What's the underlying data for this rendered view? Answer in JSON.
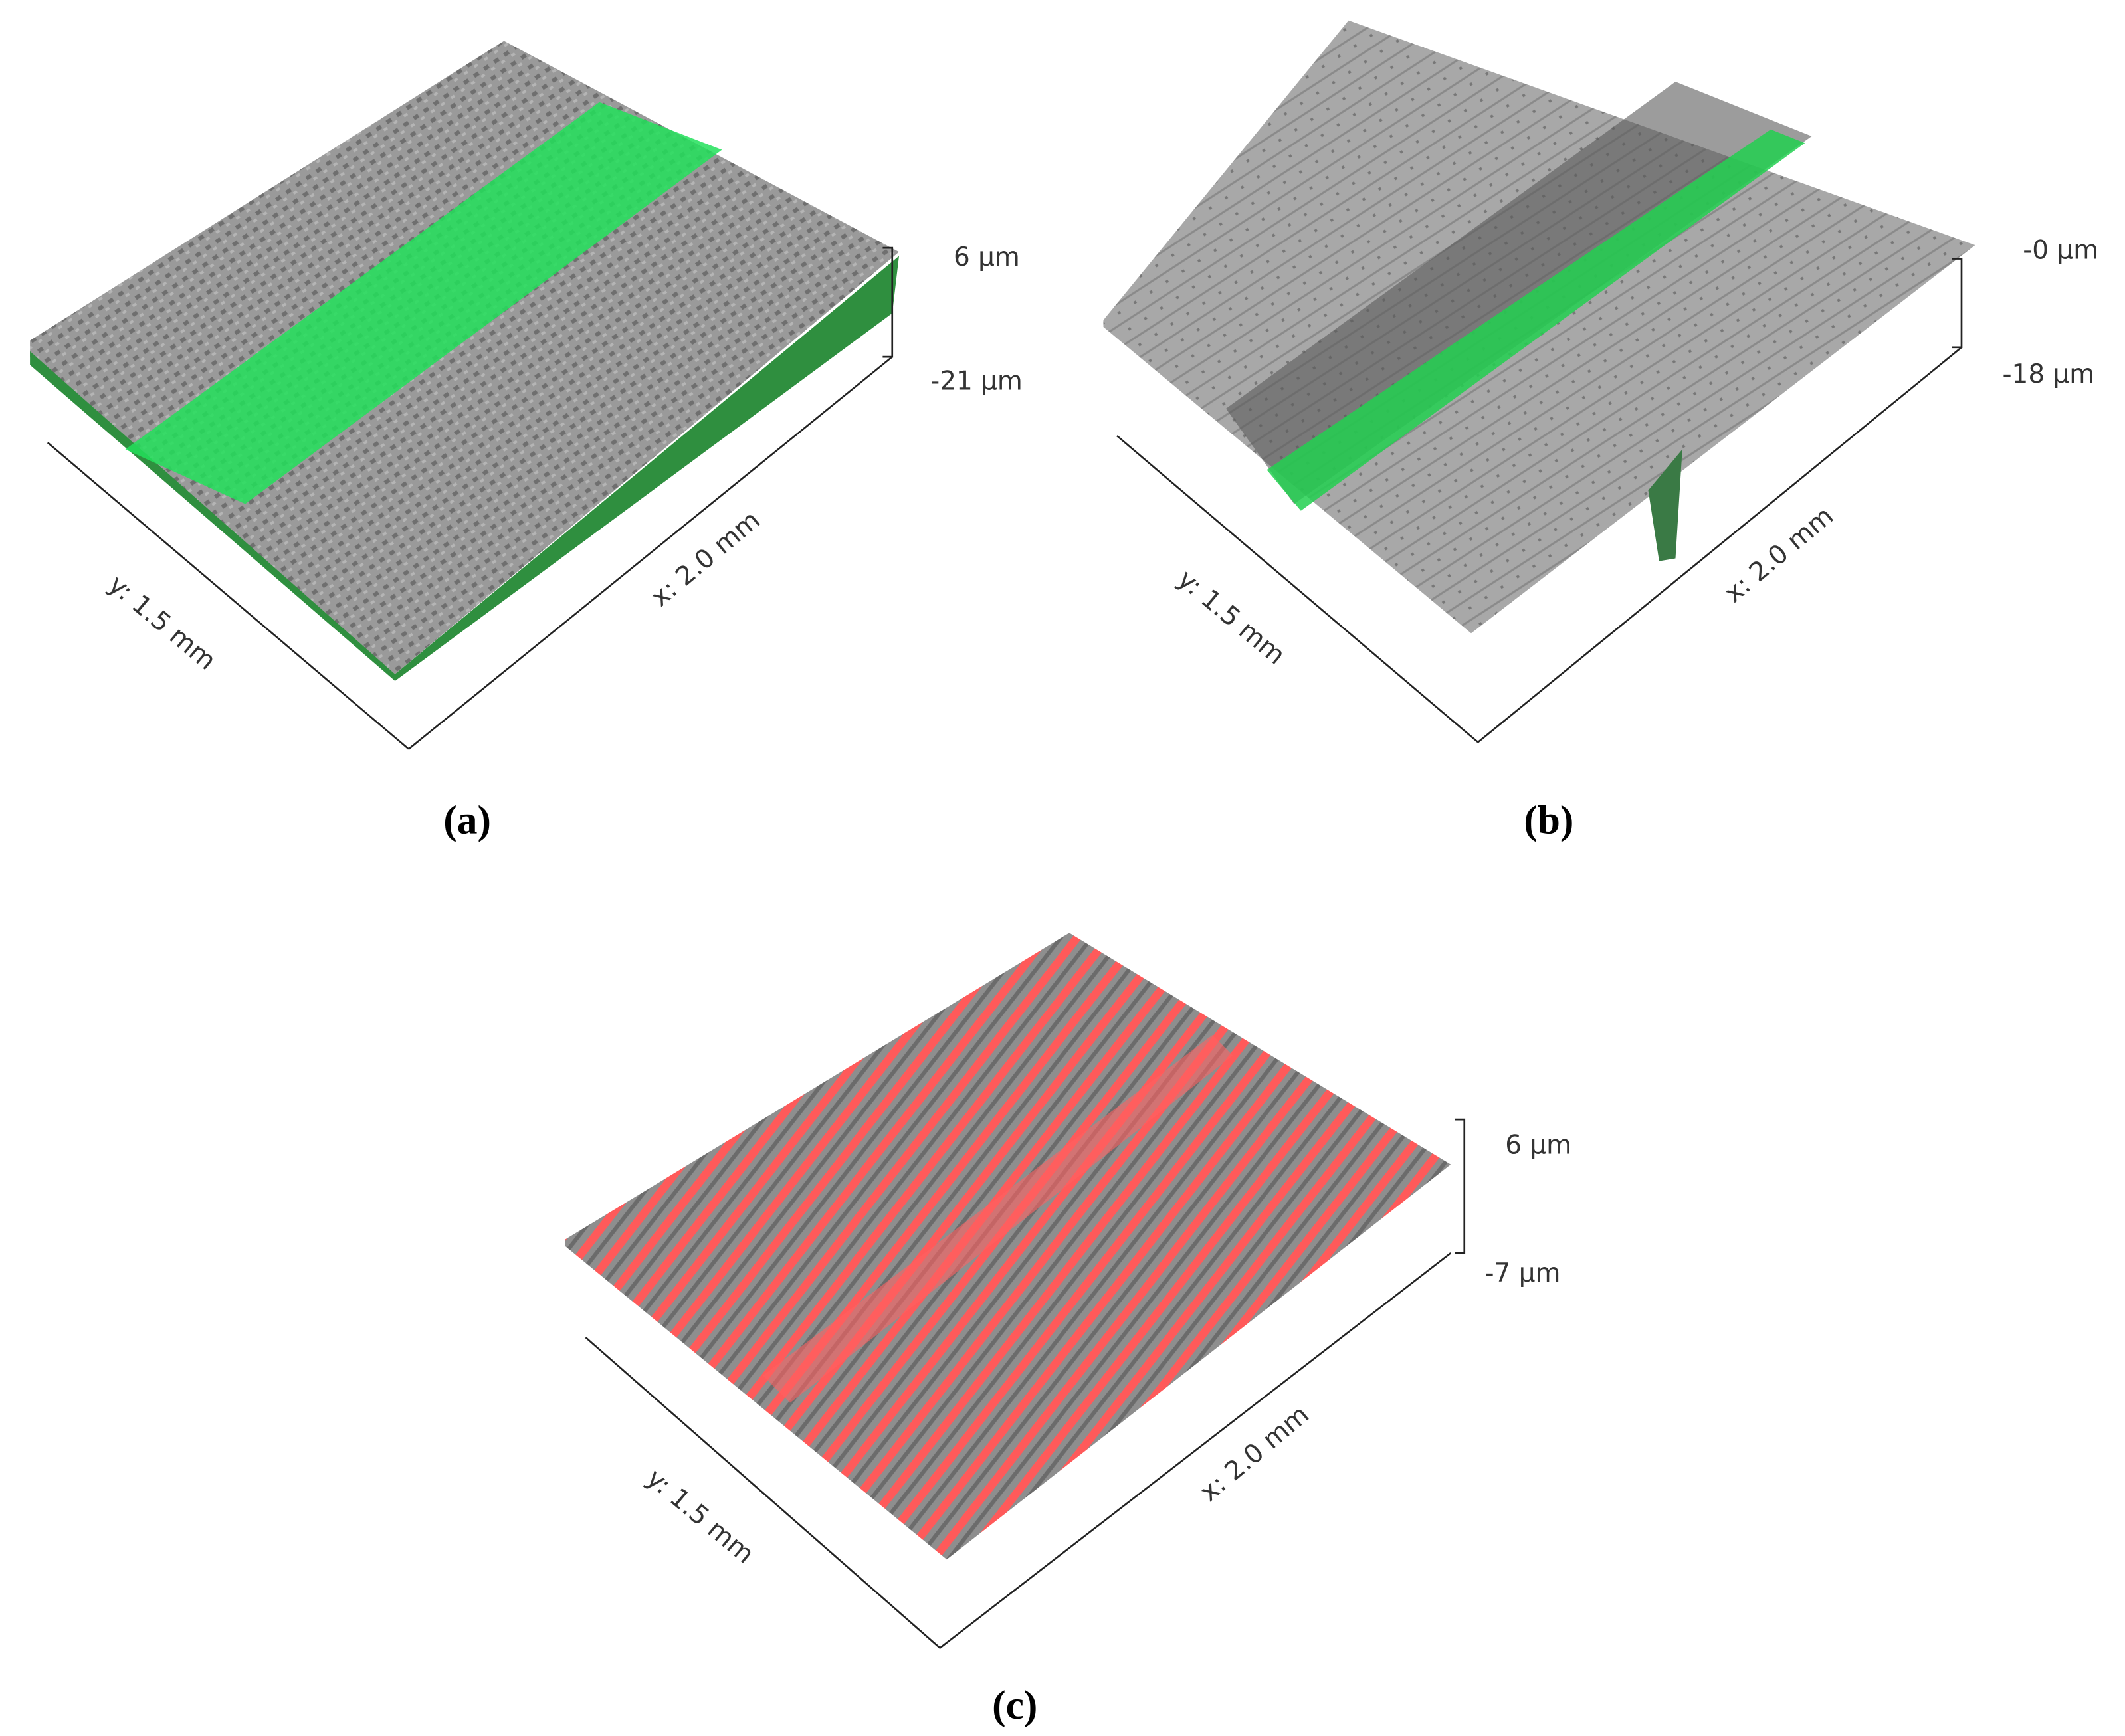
{
  "panels": [
    {
      "caption": "(a)",
      "x_axis": "x: 2.0 mm",
      "y_axis": "y: 1.5 mm",
      "z_top": "6 µm",
      "z_bottom": "-21 µm"
    },
    {
      "caption": "(b)",
      "x_axis": "x: 2.0 mm",
      "y_axis": "y: 1.5 mm",
      "z_top": "-0 µm",
      "z_bottom": "-18 µm"
    },
    {
      "caption": "(c)",
      "x_axis": "x: 2.0 mm",
      "y_axis": "y: 1.5 mm",
      "z_top": "6 µm",
      "z_bottom": "-7 µm"
    }
  ]
}
